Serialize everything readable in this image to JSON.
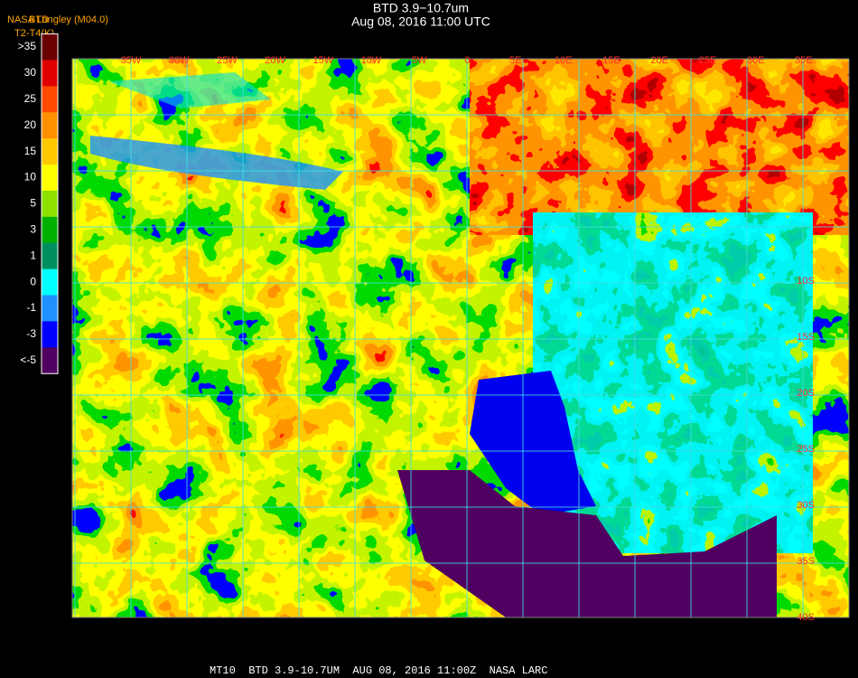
{
  "header": {
    "title": "BTD 3.9−10.7um",
    "subtitle": "Aug 08, 2016 11:00 UTC"
  },
  "legend": {
    "source": "NASA Langley (M04.0)",
    "variable": "BTD",
    "units": "T2-T4(K)",
    "items": [
      {
        "label": ">35",
        "color": "#6b0000"
      },
      {
        "label": "30",
        "color": "#e00000"
      },
      {
        "label": "25",
        "color": "#ff4a00"
      },
      {
        "label": "20",
        "color": "#ff9000"
      },
      {
        "label": "15",
        "color": "#ffc800"
      },
      {
        "label": "10",
        "color": "#ffff00"
      },
      {
        "label": "5",
        "color": "#8ee000"
      },
      {
        "label": "3",
        "color": "#00b000"
      },
      {
        "label": "1",
        "color": "#009060"
      },
      {
        "label": "0",
        "color": "#00ffff"
      },
      {
        "label": "-1",
        "color": "#1e90ff"
      },
      {
        "label": "-3",
        "color": "#0000ff"
      },
      {
        "label": "<-5",
        "color": "#500060"
      }
    ]
  },
  "map": {
    "longitude_labels": [
      "35W",
      "30W",
      "25W",
      "20W",
      "15W",
      "10W",
      "5W",
      "0",
      "5E",
      "10E",
      "15E",
      "20E",
      "25E",
      "30E",
      "35E"
    ],
    "latitude_labels": [
      "10S",
      "15S",
      "20S",
      "25S",
      "30S",
      "35S",
      "40S"
    ]
  },
  "footer": "MT10  BTD 3.9-10.7UM  AUG 08, 2016 11:00Z  NASA LARC"
}
